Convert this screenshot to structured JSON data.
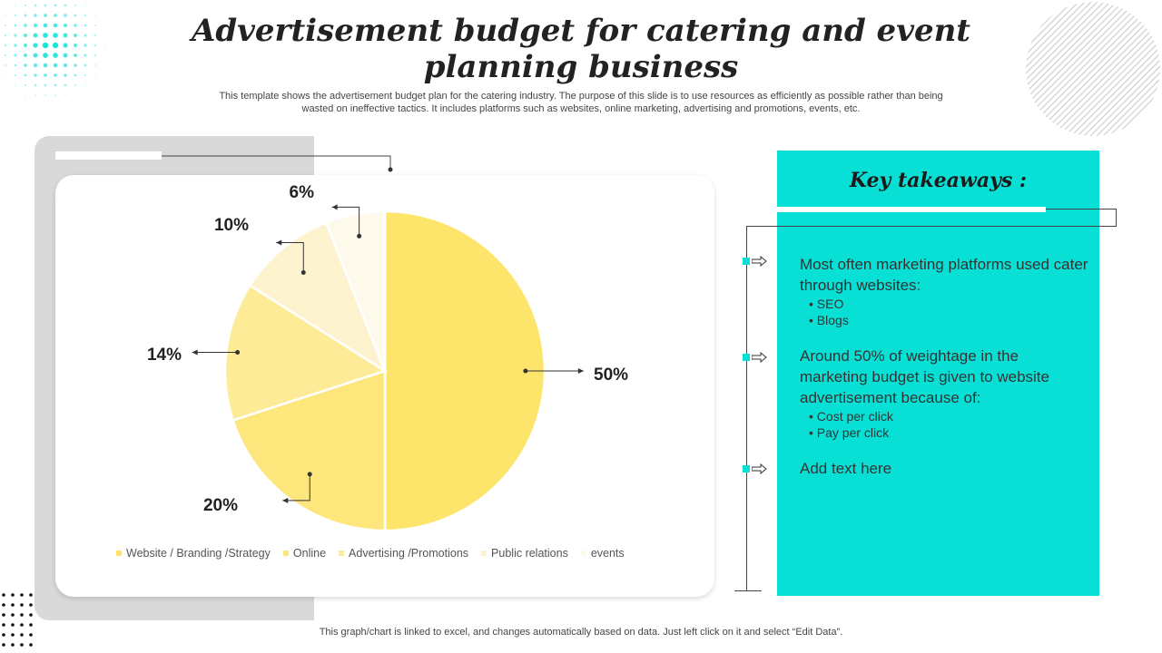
{
  "title": "Advertisement budget for catering and event planning business",
  "subtitle": "This template shows the advertisement budget plan for the catering industry. The purpose of this slide is to use resources as efficiently as possible rather than being wasted on ineffective tactics. It includes platforms such as websites, online marketing, advertising and promotions, events, etc.",
  "footer": "This graph/chart is linked to excel,  and changes automatically based on data. Just left click on it and select “Edit Data”.",
  "colors": {
    "accent": "#08e0d6",
    "slices": [
      "#fde56b",
      "#fde67c",
      "#fdeb98",
      "#fdf3cf",
      "#fefaeb"
    ]
  },
  "chart_data": {
    "type": "pie",
    "categories": [
      "Website / Branding /Strategy",
      "Online",
      "Advertising /Promotions",
      "Public relations",
      "events"
    ],
    "values": [
      50,
      20,
      14,
      10,
      6
    ],
    "labels": [
      "50%",
      "20%",
      "14%",
      "10%",
      "6%"
    ],
    "legend_position": "bottom"
  },
  "key_takeaways": {
    "title": "Key takeaways :",
    "items": [
      {
        "main": "Most often marketing platforms used cater through websites:",
        "subs": [
          "SEO",
          "Blogs"
        ]
      },
      {
        "main": "Around 50% of weightage in the marketing budget is given to website advertisement because of:",
        "subs": [
          "Cost per click",
          "Pay per click"
        ]
      },
      {
        "main": "Add text here",
        "subs": []
      }
    ],
    "icons": [
      "arrow-right-icon",
      "square-marker-icon"
    ]
  }
}
